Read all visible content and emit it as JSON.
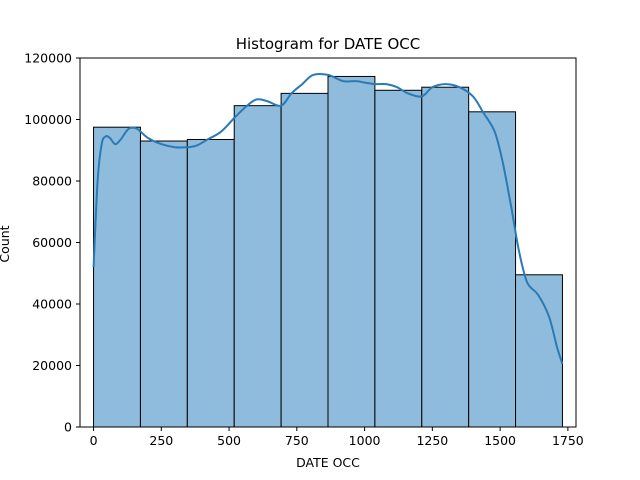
{
  "chart_data": {
    "type": "bar",
    "title": "Histogram for DATE OCC",
    "xlabel": "DATE OCC",
    "ylabel": "Count",
    "xlim": [
      -50,
      1780
    ],
    "ylim": [
      0,
      120000
    ],
    "xticks": [
      0,
      250,
      500,
      750,
      1000,
      1250,
      1500,
      1750
    ],
    "yticks": [
      0,
      20000,
      40000,
      60000,
      80000,
      100000,
      120000
    ],
    "bin_edges": [
      0,
      173,
      346,
      519,
      692,
      865,
      1038,
      1211,
      1384,
      1557,
      1730
    ],
    "values": [
      97500,
      93000,
      93500,
      104500,
      108500,
      114000,
      109500,
      110500,
      102500,
      49500
    ],
    "kde": {
      "x": [
        0,
        15,
        30,
        45,
        60,
        80,
        100,
        130,
        160,
        200,
        250,
        300,
        346,
        380,
        420,
        470,
        519,
        560,
        600,
        640,
        692,
        730,
        770,
        810,
        865,
        920,
        970,
        1000,
        1040,
        1080,
        1120,
        1160,
        1211,
        1250,
        1300,
        1350,
        1400,
        1440,
        1480,
        1510,
        1540,
        1570,
        1600,
        1640,
        1680,
        1710,
        1730
      ],
      "y": [
        52000,
        80000,
        92000,
        94500,
        94000,
        92000,
        93500,
        97000,
        97000,
        94000,
        92000,
        91000,
        91000,
        91500,
        93500,
        96000,
        100500,
        104000,
        106500,
        106000,
        104500,
        108500,
        111500,
        114500,
        114500,
        112500,
        112500,
        112000,
        111500,
        111500,
        110500,
        108500,
        107500,
        110500,
        111500,
        110500,
        107500,
        102000,
        96000,
        86000,
        72000,
        57000,
        47000,
        43000,
        36000,
        26000,
        20500
      ]
    },
    "bar_color": "#8fbcdc",
    "bar_edge_color": "#000000",
    "line_color": "#2a7ab5",
    "grid": false
  }
}
